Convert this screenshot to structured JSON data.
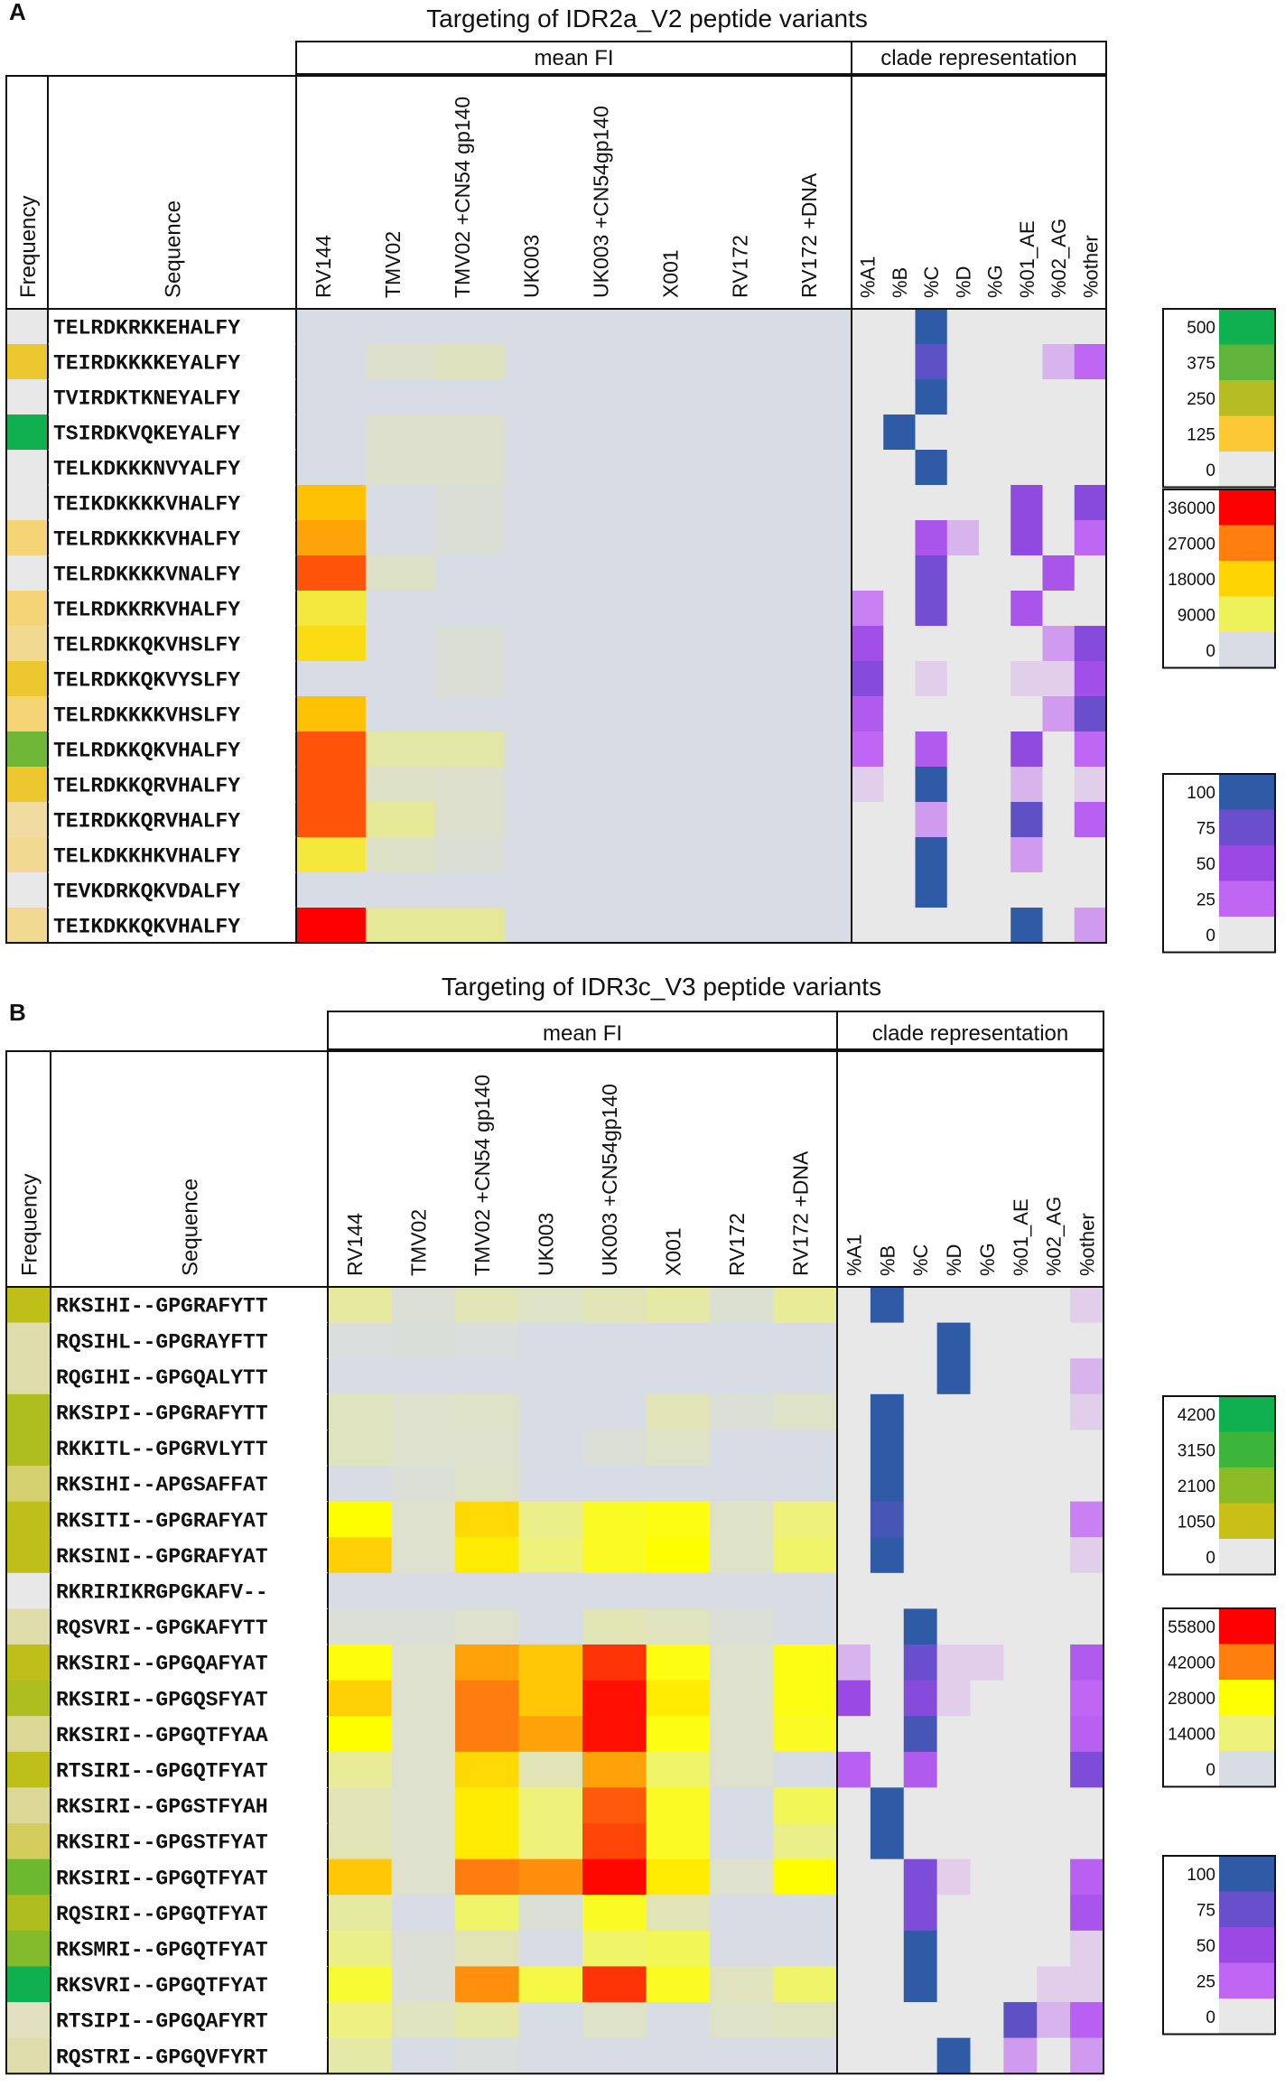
{
  "panel_labels": [
    "A",
    "B"
  ],
  "chart_data": [
    {
      "type": "heatmap",
      "title": "Targeting of IDR2a_V2 peptide variants",
      "group_headers": {
        "mean_fi": "mean FI",
        "clade": "clade representation"
      },
      "column_headers": {
        "frequency": "Frequency",
        "sequence": "Sequence"
      },
      "fi_columns": [
        "RV144",
        "TMV02",
        "TMV02 +CN54 gp140",
        "UK003",
        "UK003 +CN54gp140",
        "X001",
        "RV172",
        "RV172 +DNA"
      ],
      "clade_columns": [
        "%A1",
        "%B",
        "%C",
        "%D",
        "%G",
        "%01_AE",
        "%02_AG",
        "%other"
      ],
      "rows": [
        {
          "seq": "TELRDKRKKEHALFY",
          "freq": 0,
          "fi": [
            0,
            0,
            0,
            0,
            0,
            0,
            0,
            0
          ],
          "clade": [
            0,
            0,
            100,
            0,
            0,
            0,
            0,
            0
          ]
        },
        {
          "seq": "TEIRDKKKKEYALFY",
          "freq": 150,
          "fi": [
            0,
            1500,
            2500,
            0,
            0,
            0,
            0,
            0
          ],
          "clade": [
            0,
            0,
            80,
            0,
            0,
            0,
            10,
            25
          ]
        },
        {
          "seq": "TVIRDKTKNEYALFY",
          "freq": 0,
          "fi": [
            0,
            0,
            0,
            0,
            0,
            0,
            0,
            0
          ],
          "clade": [
            0,
            0,
            100,
            0,
            0,
            0,
            0,
            0
          ]
        },
        {
          "seq": "TSIRDKVQKEYALFY",
          "freq": 500,
          "fi": [
            0,
            1500,
            1500,
            0,
            0,
            0,
            0,
            0
          ],
          "clade": [
            0,
            100,
            0,
            0,
            0,
            0,
            0,
            0
          ]
        },
        {
          "seq": "TELKDKKKNVYALFY",
          "freq": 0,
          "fi": [
            0,
            1500,
            1500,
            0,
            0,
            0,
            0,
            0
          ],
          "clade": [
            0,
            0,
            100,
            0,
            0,
            0,
            0,
            0
          ]
        },
        {
          "seq": "TEIKDKKKKVHALFY",
          "freq": 0,
          "fi": [
            20000,
            0,
            1000,
            0,
            0,
            0,
            0,
            0
          ],
          "clade": [
            0,
            0,
            0,
            0,
            0,
            55,
            0,
            60
          ]
        },
        {
          "seq": "TELRDKKKKVHALFY",
          "freq": 80,
          "fi": [
            23000,
            0,
            1000,
            0,
            0,
            0,
            0,
            0
          ],
          "clade": [
            0,
            0,
            40,
            10,
            0,
            55,
            0,
            25
          ]
        },
        {
          "seq": "TELRDKKKKVNALFY",
          "freq": 0,
          "fi": [
            30000,
            2000,
            0,
            0,
            0,
            0,
            0,
            0
          ],
          "clade": [
            0,
            0,
            70,
            0,
            0,
            0,
            40,
            0
          ]
        },
        {
          "seq": "TELRDKKRKVHALFY",
          "freq": 80,
          "fi": [
            12000,
            0,
            0,
            0,
            0,
            0,
            0,
            0
          ],
          "clade": [
            20,
            0,
            70,
            0,
            0,
            40,
            0,
            0
          ]
        },
        {
          "seq": "TELRDKKQKVHSLFY",
          "freq": 60,
          "fi": [
            16000,
            0,
            1000,
            0,
            0,
            0,
            0,
            0
          ],
          "clade": [
            45,
            0,
            0,
            0,
            0,
            0,
            15,
            60
          ]
        },
        {
          "seq": "TELRDKKQKVYSLFY",
          "freq": 150,
          "fi": [
            0,
            0,
            1000,
            0,
            0,
            0,
            0,
            0
          ],
          "clade": [
            60,
            0,
            5,
            0,
            0,
            5,
            5,
            45
          ]
        },
        {
          "seq": "TELRDKKKKVHSLFY",
          "freq": 80,
          "fi": [
            20000,
            0,
            0,
            0,
            0,
            0,
            0,
            0
          ],
          "clade": [
            35,
            0,
            0,
            0,
            0,
            0,
            15,
            75
          ]
        },
        {
          "seq": "TELRDKKQKVHALFY",
          "freq": 350,
          "fi": [
            30000,
            4000,
            4000,
            0,
            0,
            0,
            0,
            0
          ],
          "clade": [
            25,
            0,
            35,
            0,
            0,
            55,
            0,
            25
          ]
        },
        {
          "seq": "TELRDKKQRVHALFY",
          "freq": 150,
          "fi": [
            30000,
            2000,
            1500,
            0,
            0,
            0,
            0,
            0
          ],
          "clade": [
            5,
            0,
            100,
            0,
            0,
            10,
            0,
            5
          ]
        },
        {
          "seq": "TEIRDKKQRVHALFY",
          "freq": 50,
          "fi": [
            30000,
            5000,
            1500,
            0,
            0,
            0,
            0,
            0
          ],
          "clade": [
            0,
            0,
            15,
            0,
            0,
            80,
            0,
            30
          ]
        },
        {
          "seq": "TELKDKKHKVHALFY",
          "freq": 60,
          "fi": [
            12000,
            2000,
            1000,
            0,
            0,
            0,
            0,
            0
          ],
          "clade": [
            0,
            0,
            100,
            0,
            0,
            15,
            0,
            0
          ]
        },
        {
          "seq": "TEVKDRKQKVDALFY",
          "freq": 0,
          "fi": [
            0,
            0,
            0,
            0,
            0,
            0,
            0,
            0
          ],
          "clade": [
            0,
            0,
            100,
            0,
            0,
            0,
            0,
            0
          ]
        },
        {
          "seq": "TEIKDKKQKVHALFY",
          "freq": 60,
          "fi": [
            36000,
            5000,
            5000,
            0,
            0,
            0,
            0,
            0
          ],
          "clade": [
            0,
            0,
            0,
            0,
            0,
            100,
            0,
            15
          ]
        }
      ],
      "legends": {
        "frequency": {
          "ticks": [
            "500",
            "375",
            "250",
            "125",
            "0"
          ],
          "colors": [
            "#0fb050",
            "#5fb53c",
            "#b5bd22",
            "#fbc933",
            "#e8e8e8"
          ]
        },
        "fi": {
          "ticks": [
            "36000",
            "27000",
            "18000",
            "9000",
            "0"
          ],
          "colors": [
            "#ff0000",
            "#ff7e0e",
            "#ffd400",
            "#eef25a",
            "#d8dce4"
          ]
        },
        "clade": {
          "ticks": [
            "100",
            "75",
            "50",
            "25",
            "0"
          ],
          "colors": [
            "#2f5aa6",
            "#6a4fcd",
            "#9a49e5",
            "#c066f4",
            "#e8e8e8"
          ]
        }
      }
    },
    {
      "type": "heatmap",
      "title": "Targeting of IDR3c_V3 peptide variants",
      "group_headers": {
        "mean_fi": "mean FI",
        "clade": "clade representation"
      },
      "column_headers": {
        "frequency": "Frequency",
        "sequence": "Sequence"
      },
      "fi_columns": [
        "RV144",
        "TMV02",
        "TMV02 +CN54 gp140",
        "UK003",
        "UK003 +CN54gp140",
        "X001",
        "RV172",
        "RV172 +DNA"
      ],
      "clade_columns": [
        "%A1",
        "%B",
        "%C",
        "%D",
        "%G",
        "%01_AE",
        "%02_AG",
        "%other"
      ],
      "rows": [
        {
          "seq": "RKSIHI--GPGRAFYTT",
          "freq": 1200,
          "fi": [
            9000,
            2000,
            6000,
            4000,
            6000,
            8000,
            2500,
            10000
          ],
          "clade": [
            0,
            100,
            0,
            0,
            0,
            0,
            0,
            5
          ]
        },
        {
          "seq": "RQSIHL--GPGRAYFTT",
          "freq": 300,
          "fi": [
            1000,
            1500,
            1000,
            0,
            0,
            0,
            0,
            0
          ],
          "clade": [
            0,
            0,
            0,
            100,
            0,
            0,
            0,
            0
          ]
        },
        {
          "seq": "RQGIHI--GPGQALYTT",
          "freq": 300,
          "fi": [
            0,
            0,
            0,
            0,
            0,
            0,
            0,
            0
          ],
          "clade": [
            0,
            0,
            0,
            100,
            0,
            0,
            0,
            10
          ]
        },
        {
          "seq": "RKSIPI--GPGRAFYTT",
          "freq": 1500,
          "fi": [
            5000,
            3000,
            4000,
            0,
            0,
            6000,
            2000,
            4000
          ],
          "clade": [
            0,
            100,
            0,
            0,
            0,
            0,
            0,
            5
          ]
        },
        {
          "seq": "RKKITL--GPGRVLYTT",
          "freq": 1500,
          "fi": [
            5000,
            3000,
            3000,
            0,
            2000,
            4000,
            0,
            0
          ],
          "clade": [
            0,
            100,
            0,
            0,
            0,
            0,
            0,
            0
          ]
        },
        {
          "seq": "RKSIHI--APGSAFFAT",
          "freq": 600,
          "fi": [
            0,
            2000,
            4000,
            0,
            0,
            0,
            0,
            0
          ],
          "clade": [
            0,
            100,
            0,
            0,
            0,
            0,
            0,
            0
          ]
        },
        {
          "seq": "RKSITI--GPGRAFYAT",
          "freq": 1200,
          "fi": [
            28000,
            3000,
            32000,
            12000,
            24000,
            26000,
            4000,
            14000
          ],
          "clade": [
            0,
            90,
            0,
            0,
            0,
            0,
            0,
            20
          ]
        },
        {
          "seq": "RKSINI--GPGRAFYAT",
          "freq": 1200,
          "fi": [
            33000,
            3000,
            30000,
            14000,
            24000,
            28000,
            4000,
            16000
          ],
          "clade": [
            0,
            100,
            0,
            0,
            0,
            0,
            0,
            5
          ]
        },
        {
          "seq": "RKRIRIKRGPGKAFV--",
          "freq": 0,
          "fi": [
            0,
            0,
            0,
            0,
            0,
            0,
            0,
            0
          ],
          "clade": [
            0,
            0,
            0,
            0,
            0,
            0,
            0,
            0
          ]
        },
        {
          "seq": "RQSVRI--GPGKAFYTT",
          "freq": 300,
          "fi": [
            2000,
            2000,
            3000,
            0,
            6000,
            5000,
            2000,
            0
          ],
          "clade": [
            0,
            0,
            100,
            0,
            0,
            0,
            0,
            0
          ]
        },
        {
          "seq": "RKSIRI--GPGQAFYAT",
          "freq": 1200,
          "fi": [
            27000,
            3000,
            38000,
            34000,
            50000,
            26000,
            3000,
            26000
          ],
          "clade": [
            10,
            0,
            75,
            5,
            5,
            0,
            0,
            35
          ]
        },
        {
          "seq": "RKSIRI--GPGQSFYAT",
          "freq": 1500,
          "fi": [
            33000,
            3000,
            42000,
            34000,
            54000,
            30000,
            3000,
            26000
          ],
          "clade": [
            50,
            0,
            60,
            5,
            0,
            0,
            0,
            25
          ]
        },
        {
          "seq": "RKSIRI--GPGQTFYAA",
          "freq": 400,
          "fi": [
            28000,
            3000,
            42000,
            38000,
            54000,
            26000,
            3000,
            24000
          ],
          "clade": [
            0,
            0,
            90,
            0,
            0,
            0,
            0,
            30
          ]
        },
        {
          "seq": "RTSIRI--GPGQTFYAT",
          "freq": 1200,
          "fi": [
            10000,
            3000,
            32000,
            6000,
            38000,
            16000,
            3000,
            0
          ],
          "clade": [
            30,
            0,
            35,
            0,
            0,
            0,
            0,
            65
          ]
        },
        {
          "seq": "RKSIRI--GPGSTFYAH",
          "freq": 400,
          "fi": [
            6000,
            3000,
            30000,
            14000,
            46000,
            24000,
            0,
            18000
          ],
          "clade": [
            0,
            100,
            0,
            0,
            0,
            0,
            0,
            0
          ]
        },
        {
          "seq": "RKSIRI--GPGSTFYAT",
          "freq": 700,
          "fi": [
            6000,
            3000,
            30000,
            14000,
            48000,
            24000,
            0,
            12000
          ],
          "clade": [
            0,
            100,
            0,
            0,
            0,
            0,
            0,
            0
          ]
        },
        {
          "seq": "RKSIRI--GPGQTFYAT",
          "freq": 2500,
          "fi": [
            34000,
            3000,
            42000,
            40000,
            55000,
            30000,
            3000,
            28000
          ],
          "clade": [
            0,
            0,
            65,
            5,
            0,
            0,
            0,
            30
          ]
        },
        {
          "seq": "RQSIRI--GPGQTFYAT",
          "freq": 1500,
          "fi": [
            9000,
            0,
            16000,
            2000,
            24000,
            6000,
            0,
            0
          ],
          "clade": [
            0,
            0,
            65,
            0,
            0,
            0,
            0,
            40
          ]
        },
        {
          "seq": "RKSMRI--GPGQTFYAT",
          "freq": 2200,
          "fi": [
            12000,
            2000,
            6000,
            0,
            16000,
            18000,
            0,
            0
          ],
          "clade": [
            0,
            0,
            100,
            0,
            0,
            0,
            0,
            5
          ]
        },
        {
          "seq": "RKSVRI--GPGQTFYAT",
          "freq": 4200,
          "fi": [
            22000,
            2000,
            40000,
            20000,
            50000,
            24000,
            5000,
            16000
          ],
          "clade": [
            0,
            0,
            100,
            0,
            0,
            0,
            5,
            5
          ]
        },
        {
          "seq": "RTSIPI--GPGQAFYRT",
          "freq": 200,
          "fi": [
            13000,
            5000,
            8000,
            0,
            4000,
            0,
            4000,
            5000
          ],
          "clade": [
            0,
            0,
            0,
            0,
            0,
            80,
            10,
            30
          ]
        },
        {
          "seq": "RQSTRI--GPGQVFYRT",
          "freq": 300,
          "fi": [
            8000,
            0,
            1000,
            0,
            0,
            0,
            0,
            0
          ],
          "clade": [
            0,
            0,
            0,
            100,
            0,
            15,
            0,
            15
          ]
        }
      ],
      "legends": {
        "frequency": {
          "ticks": [
            "4200",
            "3150",
            "2100",
            "1050",
            "0"
          ],
          "colors": [
            "#0fb050",
            "#3cb53a",
            "#8abc28",
            "#c8c016",
            "#e8e8e8"
          ]
        },
        "fi": {
          "ticks": [
            "55800",
            "42000",
            "28000",
            "14000",
            "0"
          ],
          "colors": [
            "#ff0000",
            "#ff7e0e",
            "#ffff00",
            "#eef27a",
            "#d8dce4"
          ]
        },
        "clade": {
          "ticks": [
            "100",
            "75",
            "50",
            "25",
            "0"
          ],
          "colors": [
            "#2f5aa6",
            "#6a4fcd",
            "#9a49e5",
            "#c066f4",
            "#e8e8e8"
          ]
        }
      }
    }
  ]
}
